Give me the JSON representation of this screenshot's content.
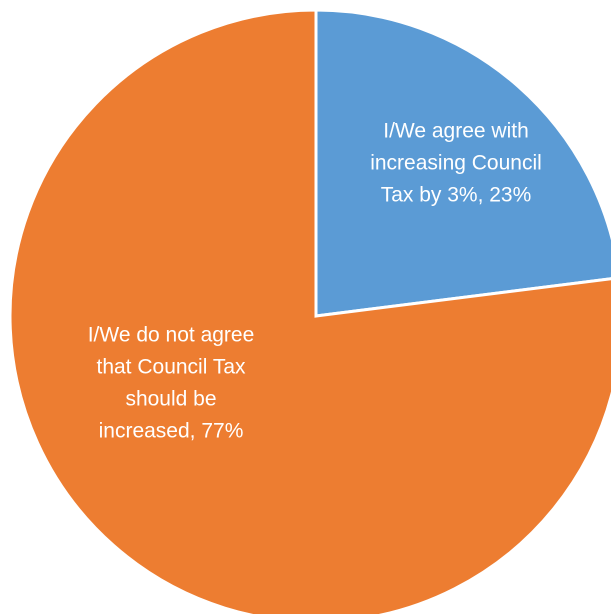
{
  "chart_data": {
    "type": "pie",
    "title": "",
    "slices": [
      {
        "label": "I/We agree with increasing Council Tax by 3%",
        "value": 23,
        "data_label_lines": [
          "I/We agree with",
          "increasing Council",
          "Tax by 3%, 23%"
        ],
        "color": "#5B9BD5"
      },
      {
        "label": "I/We do not agree that Council Tax should be increased",
        "value": 77,
        "data_label_lines": [
          "I/We do not agree",
          "that Council Tax",
          "should be",
          "increased, 77%"
        ],
        "color": "#ED7D31"
      }
    ]
  }
}
